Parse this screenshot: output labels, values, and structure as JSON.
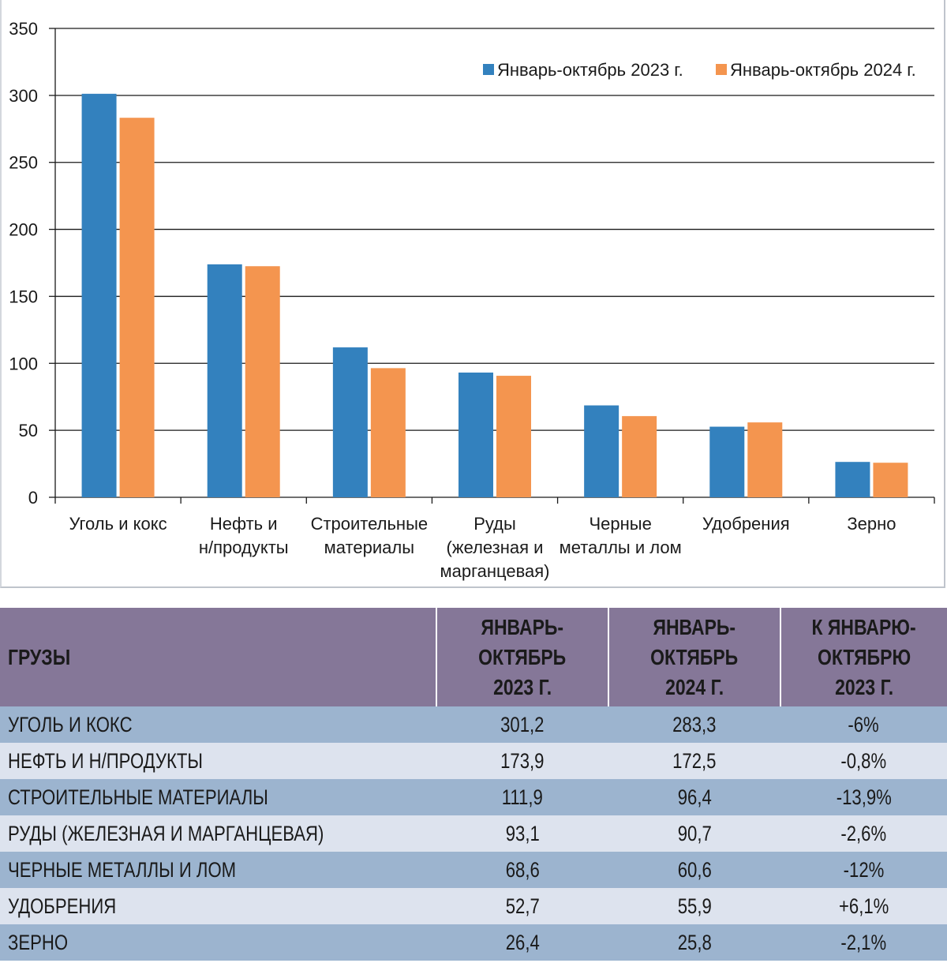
{
  "chart_data": {
    "type": "bar",
    "title": "",
    "xlabel": "",
    "ylabel": "",
    "ylim": [
      0,
      350
    ],
    "yticks": [
      0,
      50,
      100,
      150,
      200,
      250,
      300,
      350
    ],
    "grid": true,
    "legend_position": "top-right",
    "categories": [
      [
        "Уголь и кокс"
      ],
      [
        "Нефть и",
        "н/продукты"
      ],
      [
        "Строительные",
        "материалы"
      ],
      [
        "Руды",
        "(железная и",
        "марганцевая)"
      ],
      [
        "Черные",
        "металлы и лом"
      ],
      [
        "Удобрения"
      ],
      [
        "Зерно"
      ]
    ],
    "series": [
      {
        "name": "Январь-октябрь 2023 г.",
        "color": "#3381be",
        "values": [
          301.2,
          173.9,
          111.9,
          93.1,
          68.6,
          52.7,
          26.4
        ]
      },
      {
        "name": "Январь-октябрь 2024 г.",
        "color": "#f4954f",
        "values": [
          283.3,
          172.5,
          96.4,
          90.7,
          60.6,
          55.9,
          25.8
        ]
      }
    ]
  },
  "table": {
    "headers": [
      [
        "ГРУЗЫ"
      ],
      [
        "ЯНВАРЬ-",
        "ОКТЯБРЬ",
        "2023 Г."
      ],
      [
        "ЯНВАРЬ-",
        "ОКТЯБРЬ",
        "2024 Г."
      ],
      [
        "К ЯНВАРЮ-",
        "ОКТЯБРЮ",
        "2023 Г."
      ]
    ],
    "rows": [
      [
        "УГОЛЬ И КОКС",
        "301,2",
        "283,3",
        "-6%"
      ],
      [
        "НЕФТЬ И Н/ПРОДУКТЫ",
        "173,9",
        "172,5",
        "-0,8%"
      ],
      [
        "СТРОИТЕЛЬНЫЕ МАТЕРИАЛЫ",
        "111,9",
        "96,4",
        "-13,9%"
      ],
      [
        "РУДЫ (ЖЕЛЕЗНАЯ И МАРГАНЦЕВАЯ)",
        "93,1",
        "90,7",
        "-2,6%"
      ],
      [
        "ЧЕРНЫЕ МЕТАЛЛЫ И ЛОМ",
        "68,6",
        "60,6",
        "-12%"
      ],
      [
        "УДОБРЕНИЯ",
        "52,7",
        "55,9",
        "+6,1%"
      ],
      [
        "ЗЕРНО",
        "26,4",
        "25,8",
        "-2,1%"
      ]
    ]
  }
}
